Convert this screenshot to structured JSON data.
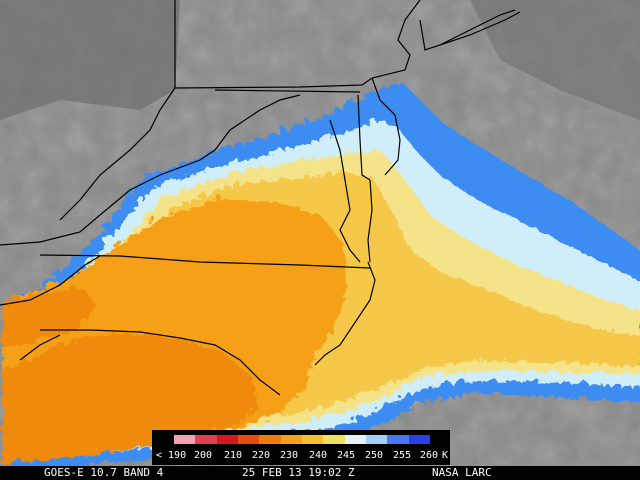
{
  "legend": {
    "labels": [
      "< 190",
      "200",
      "210",
      "220",
      "230",
      "240",
      "245",
      "250",
      "255",
      "260",
      "K"
    ],
    "colors": [
      "#f0a0b0",
      "#e04050",
      "#d81818",
      "#e84a10",
      "#f07c10",
      "#f8a018",
      "#f8c030",
      "#f0e060",
      "#e8f0f8",
      "#a0d0f8",
      "#4878f8",
      "#2840e8"
    ]
  },
  "footer": {
    "product": "GOES-E 10.7 BAND 4",
    "datetime": "25 FEB 13 19:02 Z",
    "credit": "NASA LARC"
  },
  "colors": {
    "cloud_gray": "#8a8a8a",
    "orange_warm": "#f5a012",
    "orange_deep": "#f08a10",
    "yellow": "#f5c84a",
    "pale_yellow": "#f5e38a",
    "light_blue": "#cfeefa",
    "mid_blue": "#3e8cf2",
    "border_line": "#000000"
  }
}
